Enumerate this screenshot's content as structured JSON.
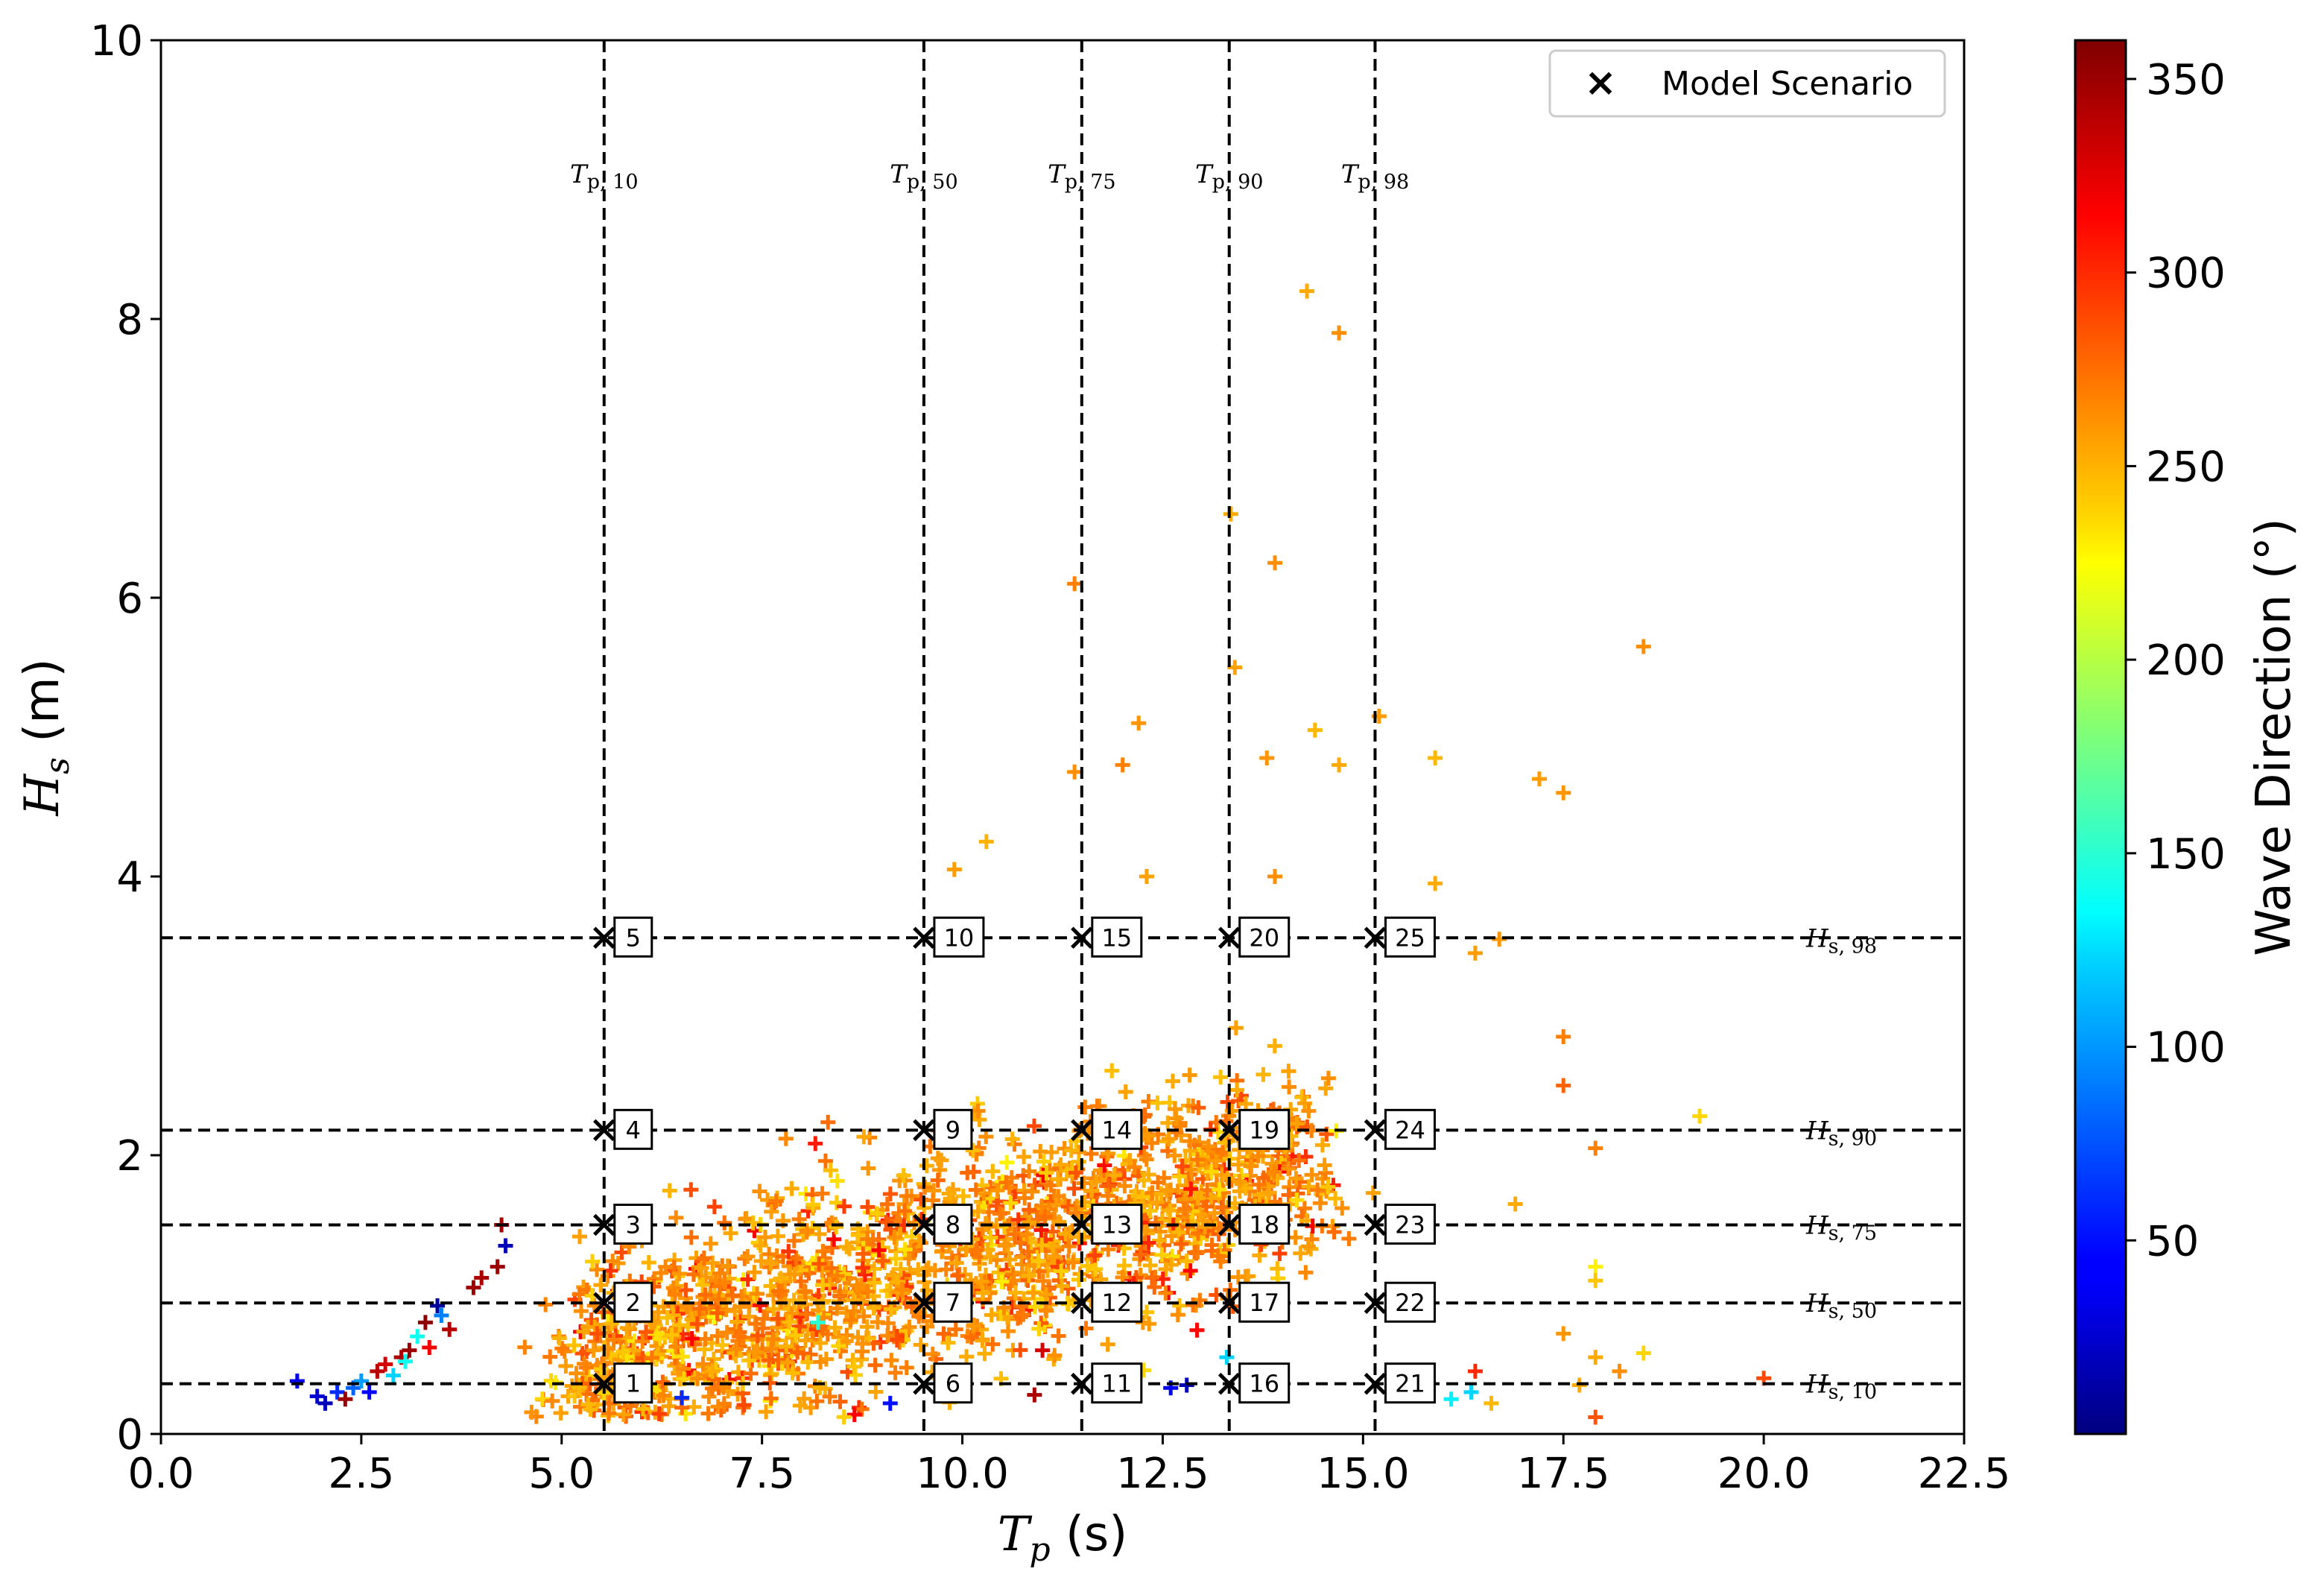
{
  "chart_data": {
    "type": "scatter",
    "title": "",
    "xlabel_symbol": "T",
    "xlabel_sub": "p",
    "xlabel_unit": " (s)",
    "ylabel_symbol": "H",
    "ylabel_sub": "s",
    "ylabel_unit": " (m)",
    "xlim": [
      0,
      22.5
    ],
    "ylim": [
      0,
      10
    ],
    "x_ticks": [
      0,
      2.5,
      5,
      7.5,
      10,
      12.5,
      15,
      17.5,
      20,
      22.5
    ],
    "x_tick_labels": [
      "0.0",
      "2.5",
      "5.0",
      "7.5",
      "10.0",
      "12.5",
      "15.0",
      "17.5",
      "20.0",
      "22.5"
    ],
    "y_ticks": [
      0,
      2,
      4,
      6,
      8,
      10
    ],
    "y_tick_labels": [
      "0",
      "2",
      "4",
      "6",
      "8",
      "10"
    ],
    "colorbar": {
      "label": "Wave Direction (°)",
      "colormap": "jet",
      "range": [
        0,
        360
      ],
      "ticks": [
        50,
        100,
        150,
        200,
        250,
        300,
        350
      ],
      "tick_labels": [
        "50",
        "100",
        "150",
        "200",
        "250",
        "300",
        "350"
      ]
    },
    "legend": {
      "label": "Model Scenario",
      "marker": "×",
      "placement": "top-right"
    },
    "tp_percentiles": [
      {
        "name": "T",
        "sub": "p, 10",
        "value": 5.53
      },
      {
        "name": "T",
        "sub": "p, 50",
        "value": 9.52
      },
      {
        "name": "T",
        "sub": "p, 75",
        "value": 11.49
      },
      {
        "name": "T",
        "sub": "p, 90",
        "value": 13.33
      },
      {
        "name": "T",
        "sub": "p, 98",
        "value": 15.15
      }
    ],
    "hs_percentiles": [
      {
        "name": "H",
        "sub": "s, 10",
        "value": 0.36
      },
      {
        "name": "H",
        "sub": "s, 50",
        "value": 0.94
      },
      {
        "name": "H",
        "sub": "s, 75",
        "value": 1.5
      },
      {
        "name": "H",
        "sub": "s, 90",
        "value": 2.18
      },
      {
        "name": "H",
        "sub": "s, 98",
        "value": 3.56
      }
    ],
    "scenarios": [
      {
        "id": "1",
        "tp": 5.53,
        "hs": 0.36
      },
      {
        "id": "2",
        "tp": 5.53,
        "hs": 0.94
      },
      {
        "id": "3",
        "tp": 5.53,
        "hs": 1.5
      },
      {
        "id": "4",
        "tp": 5.53,
        "hs": 2.18
      },
      {
        "id": "5",
        "tp": 5.53,
        "hs": 3.56
      },
      {
        "id": "6",
        "tp": 9.52,
        "hs": 0.36
      },
      {
        "id": "7",
        "tp": 9.52,
        "hs": 0.94
      },
      {
        "id": "8",
        "tp": 9.52,
        "hs": 1.5
      },
      {
        "id": "9",
        "tp": 9.52,
        "hs": 2.18
      },
      {
        "id": "10",
        "tp": 9.52,
        "hs": 3.56
      },
      {
        "id": "11",
        "tp": 11.49,
        "hs": 0.36
      },
      {
        "id": "12",
        "tp": 11.49,
        "hs": 0.94
      },
      {
        "id": "13",
        "tp": 11.49,
        "hs": 1.5
      },
      {
        "id": "14",
        "tp": 11.49,
        "hs": 2.18
      },
      {
        "id": "15",
        "tp": 11.49,
        "hs": 3.56
      },
      {
        "id": "16",
        "tp": 13.33,
        "hs": 0.36
      },
      {
        "id": "17",
        "tp": 13.33,
        "hs": 0.94
      },
      {
        "id": "18",
        "tp": 13.33,
        "hs": 1.5
      },
      {
        "id": "19",
        "tp": 13.33,
        "hs": 2.18
      },
      {
        "id": "20",
        "tp": 13.33,
        "hs": 3.56
      },
      {
        "id": "21",
        "tp": 15.15,
        "hs": 0.36
      },
      {
        "id": "22",
        "tp": 15.15,
        "hs": 0.94
      },
      {
        "id": "23",
        "tp": 15.15,
        "hs": 1.5
      },
      {
        "id": "24",
        "tp": 15.15,
        "hs": 2.18
      },
      {
        "id": "25",
        "tp": 15.15,
        "hs": 3.56
      }
    ],
    "observations": [
      [
        1.7,
        0.38,
        40
      ],
      [
        1.95,
        0.27,
        30
      ],
      [
        2.05,
        0.22,
        20
      ],
      [
        2.2,
        0.3,
        60
      ],
      [
        2.3,
        0.25,
        350
      ],
      [
        2.4,
        0.33,
        80
      ],
      [
        2.5,
        0.38,
        100
      ],
      [
        2.6,
        0.3,
        45
      ],
      [
        2.7,
        0.45,
        340
      ],
      [
        2.8,
        0.5,
        330
      ],
      [
        2.9,
        0.42,
        120
      ],
      [
        3.0,
        0.55,
        345
      ],
      [
        3.1,
        0.6,
        350
      ],
      [
        3.2,
        0.7,
        140
      ],
      [
        3.3,
        0.8,
        355
      ],
      [
        3.35,
        0.62,
        320
      ],
      [
        3.5,
        0.85,
        90
      ],
      [
        3.6,
        0.75,
        340
      ],
      [
        3.9,
        1.05,
        350
      ],
      [
        4.0,
        1.12,
        345
      ],
      [
        4.2,
        1.2,
        350
      ],
      [
        4.25,
        1.5,
        345
      ],
      [
        4.3,
        1.35,
        20
      ],
      [
        3.45,
        0.92,
        10
      ],
      [
        3.05,
        0.52,
        140
      ],
      [
        14.3,
        8.2,
        255
      ],
      [
        14.7,
        7.9,
        265
      ],
      [
        11.4,
        6.1,
        270
      ],
      [
        13.35,
        6.6,
        255
      ],
      [
        13.9,
        6.25,
        265
      ],
      [
        18.5,
        5.65,
        265
      ],
      [
        12.2,
        5.1,
        262
      ],
      [
        14.4,
        5.05,
        250
      ],
      [
        15.2,
        5.15,
        260
      ],
      [
        13.4,
        5.5,
        258
      ],
      [
        11.4,
        4.75,
        265
      ],
      [
        12.0,
        4.8,
        270
      ],
      [
        14.7,
        4.8,
        255
      ],
      [
        13.8,
        4.85,
        262
      ],
      [
        15.9,
        4.85,
        250
      ],
      [
        17.2,
        4.7,
        260
      ],
      [
        17.5,
        4.6,
        262
      ],
      [
        10.3,
        4.25,
        252
      ],
      [
        9.9,
        4.05,
        260
      ],
      [
        12.3,
        4.0,
        258
      ],
      [
        13.9,
        4.0,
        265
      ],
      [
        15.9,
        3.95,
        255
      ],
      [
        16.7,
        3.55,
        262
      ],
      [
        16.4,
        3.45,
        260
      ],
      [
        17.5,
        2.85,
        270
      ],
      [
        17.5,
        2.5,
        280
      ],
      [
        19.2,
        2.28,
        240
      ],
      [
        17.9,
        2.05,
        270
      ],
      [
        16.9,
        1.65,
        255
      ],
      [
        17.9,
        1.2,
        230
      ],
      [
        17.9,
        1.1,
        245
      ],
      [
        17.5,
        0.72,
        262
      ],
      [
        17.9,
        0.55,
        255
      ],
      [
        18.5,
        0.58,
        240
      ],
      [
        18.2,
        0.45,
        265
      ],
      [
        17.7,
        0.35,
        255
      ],
      [
        17.9,
        0.12,
        285
      ],
      [
        20.0,
        0.4,
        290
      ],
      [
        16.6,
        0.22,
        250
      ],
      [
        16.4,
        0.45,
        300
      ],
      [
        16.35,
        0.3,
        120
      ],
      [
        16.1,
        0.25,
        130
      ],
      [
        12.6,
        0.33,
        40
      ],
      [
        9.1,
        0.22,
        50
      ],
      [
        6.5,
        0.26,
        60
      ],
      [
        11.0,
        0.6,
        330
      ],
      [
        10.9,
        0.28,
        345
      ],
      [
        13.3,
        0.55,
        120
      ],
      [
        12.8,
        0.35,
        20
      ],
      [
        8.2,
        0.8,
        150
      ]
    ]
  }
}
